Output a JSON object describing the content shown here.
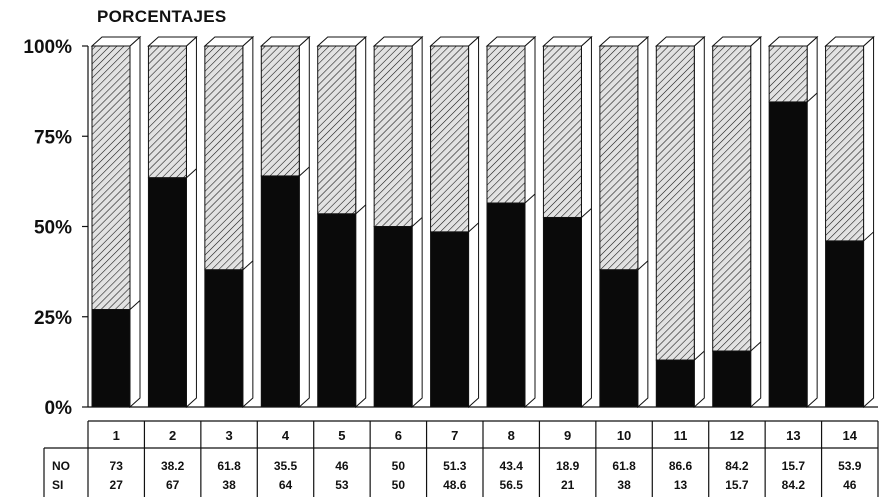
{
  "chart_data": {
    "type": "bar",
    "stacked": true,
    "normalized_percent": true,
    "title": "PORCENTAJES",
    "categories": [
      "1",
      "2",
      "3",
      "4",
      "5",
      "6",
      "7",
      "8",
      "9",
      "10",
      "11",
      "12",
      "13",
      "14"
    ],
    "y_ticks": [
      "0%",
      "25%",
      "50%",
      "75%",
      "100%"
    ],
    "ylim": [
      0,
      100
    ],
    "bar_values_percent": [
      27,
      63.5,
      38,
      64,
      53.5,
      50,
      48.5,
      56.5,
      52.5,
      38,
      13,
      15.5,
      84.5,
      46
    ],
    "series": [
      {
        "name": "NO",
        "values": [
          73,
          38.2,
          61.8,
          35.5,
          46,
          50,
          51.3,
          43.4,
          18.9,
          61.8,
          86.6,
          84.2,
          15.7,
          53.9
        ]
      },
      {
        "name": "SI",
        "values": [
          27,
          67,
          38,
          64,
          53,
          50,
          48.6,
          56.5,
          21,
          38,
          13,
          15.7,
          84.2,
          46
        ]
      }
    ],
    "colors": {
      "si_fill": "#0a0a0a",
      "no_fill": "#e2e2e2",
      "hatch": "#111111"
    },
    "grid": false,
    "legend": "table-bottom"
  }
}
